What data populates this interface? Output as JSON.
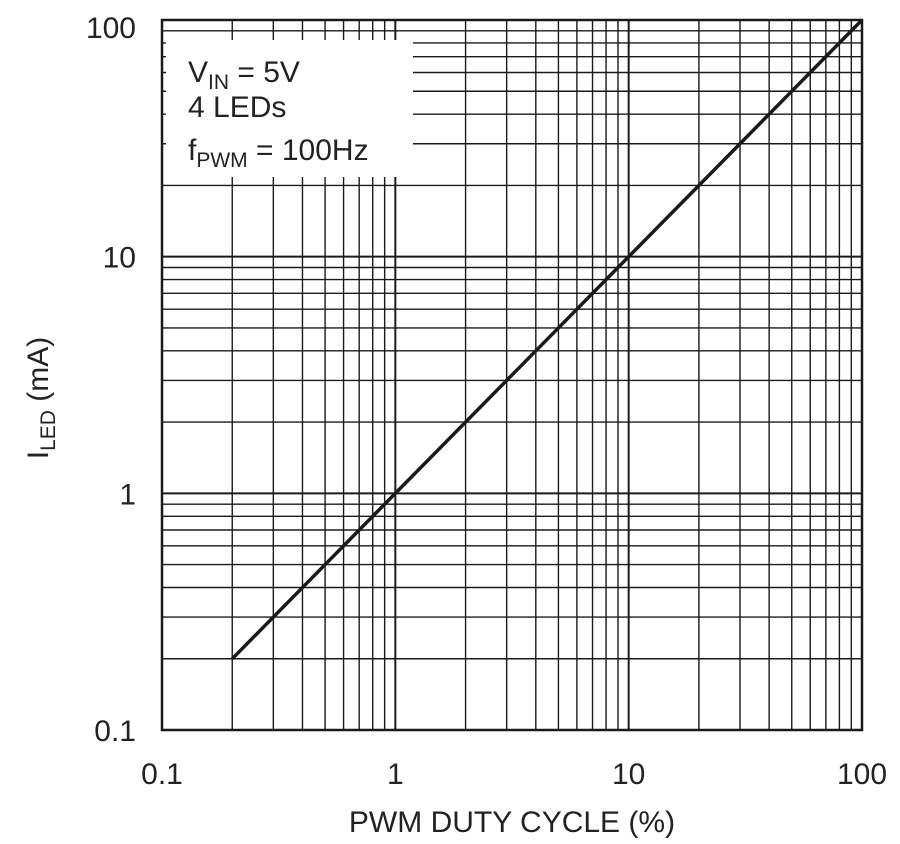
{
  "chart_data": {
    "type": "line",
    "x_scale": "log",
    "y_scale": "log",
    "xlim": [
      0.1,
      100
    ],
    "ylim": [
      0.1,
      100
    ],
    "grid": true,
    "xlabel": "PWM DUTY CYCLE (%)",
    "ylabel": {
      "main": "I",
      "sub": "LED",
      "unit": " (mA)"
    },
    "x_tick_labels": [
      {
        "value": 0.1,
        "label": "0.1"
      },
      {
        "value": 1,
        "label": "1"
      },
      {
        "value": 10,
        "label": "10"
      },
      {
        "value": 100,
        "label": "100"
      }
    ],
    "y_tick_labels": [
      {
        "value": 0.1,
        "label": "0.1"
      },
      {
        "value": 1,
        "label": "1"
      },
      {
        "value": 10,
        "label": "10"
      },
      {
        "value": 100,
        "label": "100"
      }
    ],
    "series": [
      {
        "points": [
          {
            "x": 0.2,
            "y": 0.2
          },
          {
            "x": 100,
            "y": 100
          }
        ]
      }
    ],
    "annotations": {
      "line1": {
        "main": "V",
        "sub": "IN",
        "rest": " = 5V"
      },
      "line2": {
        "text": "4 LEDs"
      },
      "line3": {
        "main": "f",
        "sub": "PWM",
        "rest": " = 100Hz"
      }
    },
    "colors": {
      "line": "#1a1a1a",
      "grid": "#1a1a1a",
      "background": "#ffffff"
    }
  }
}
